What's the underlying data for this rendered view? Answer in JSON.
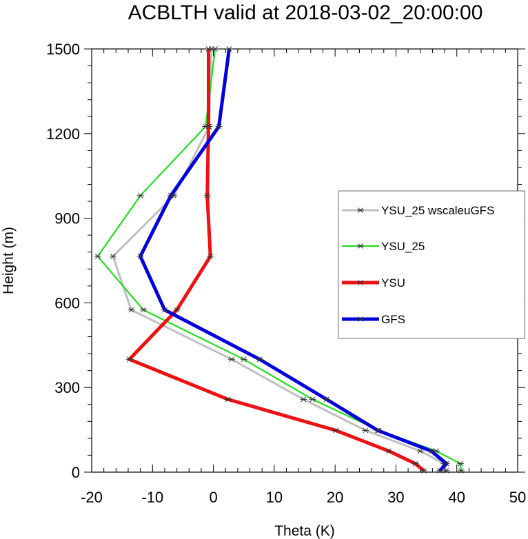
{
  "chart_data": {
    "type": "line",
    "title": "ACBLTH valid at 2018-03-02_20:00:00",
    "xlabel": "Theta (K)",
    "ylabel": "Height (m)",
    "xlim": [
      -20,
      50
    ],
    "ylim": [
      0,
      1500
    ],
    "xticks": [
      "-20",
      "-10",
      "0",
      "10",
      "20",
      "30",
      "40",
      "50"
    ],
    "yticks": [
      "0",
      "300",
      "600",
      "900",
      "1200",
      "1500"
    ],
    "xtick_values": [
      -20,
      -10,
      0,
      10,
      20,
      30,
      40,
      50
    ],
    "ytick_values": [
      0,
      300,
      600,
      900,
      1200,
      1500
    ],
    "grid": false,
    "legend": "right",
    "series": [
      {
        "name": "YSU_25 wscaleuGFS",
        "color": "#bfbfbf",
        "marker": "asterisk",
        "points": [
          [
            38.3,
            5
          ],
          [
            37.9,
            30
          ],
          [
            34.0,
            75
          ],
          [
            25.0,
            148
          ],
          [
            14.8,
            258
          ],
          [
            3.0,
            400
          ],
          [
            -13.5,
            575
          ],
          [
            -16.5,
            765
          ],
          [
            -6.5,
            980
          ],
          [
            -0.7,
            1225
          ],
          [
            -0.3,
            1500
          ]
        ]
      },
      {
        "name": "YSU_25",
        "color": "#22dd22",
        "marker": "asterisk",
        "points": [
          [
            40.7,
            5
          ],
          [
            40.6,
            30
          ],
          [
            36.6,
            75
          ],
          [
            27.2,
            148
          ],
          [
            16.3,
            258
          ],
          [
            5.0,
            400
          ],
          [
            -11.5,
            575
          ],
          [
            -19.0,
            765
          ],
          [
            -12.0,
            980
          ],
          [
            -1.3,
            1225
          ],
          [
            0.3,
            1500
          ]
        ]
      },
      {
        "name": "YSU",
        "color": "#ee1111",
        "marker": "asterisk",
        "points": [
          [
            34.6,
            5
          ],
          [
            33.2,
            30
          ],
          [
            28.8,
            75
          ],
          [
            20.1,
            148
          ],
          [
            2.4,
            258
          ],
          [
            -13.8,
            400
          ],
          [
            -6.0,
            575
          ],
          [
            -0.5,
            765
          ],
          [
            -1.0,
            980
          ],
          [
            -0.8,
            1225
          ],
          [
            -0.8,
            1500
          ]
        ]
      },
      {
        "name": "GFS",
        "color": "#0000dd",
        "marker": "asterisk",
        "points": [
          [
            37.2,
            5
          ],
          [
            38.3,
            30
          ],
          [
            35.8,
            75
          ],
          [
            27.0,
            148
          ],
          [
            18.6,
            258
          ],
          [
            7.6,
            400
          ],
          [
            -8.0,
            575
          ],
          [
            -12.0,
            765
          ],
          [
            -7.0,
            980
          ],
          [
            0.9,
            1225
          ],
          [
            2.6,
            1500
          ]
        ]
      }
    ]
  }
}
